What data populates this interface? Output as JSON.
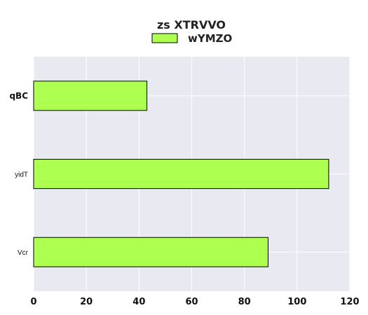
{
  "chart_data": {
    "type": "bar",
    "orientation": "horizontal",
    "legend": {
      "title": "zs XTRVVO",
      "placement": "top-center"
    },
    "categories": [
      "qBC",
      "yidT",
      "Vcr"
    ],
    "series": [
      {
        "name": "wYMZO",
        "values": [
          43,
          112,
          89
        ],
        "color": "#adff50"
      }
    ],
    "xlim": [
      0,
      120
    ],
    "xticks": [
      0,
      20,
      40,
      60,
      80,
      100,
      120
    ],
    "grid": true,
    "colors": {
      "plot_background": "#e9e9f1",
      "grid": "#ffffff",
      "bar_edge": "#000000"
    }
  }
}
